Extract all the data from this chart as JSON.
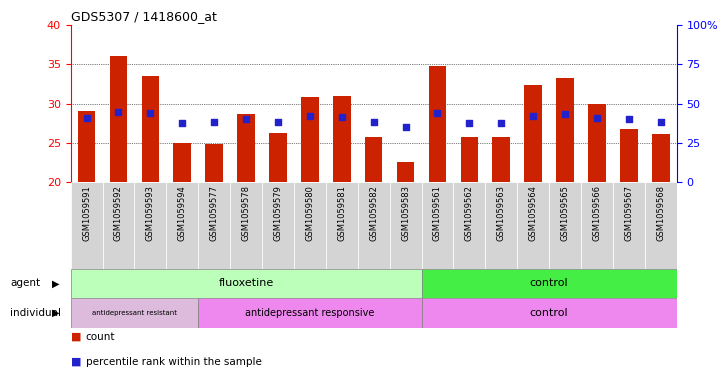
{
  "title": "GDS5307 / 1418600_at",
  "samples": [
    "GSM1059591",
    "GSM1059592",
    "GSM1059593",
    "GSM1059594",
    "GSM1059577",
    "GSM1059578",
    "GSM1059579",
    "GSM1059580",
    "GSM1059581",
    "GSM1059582",
    "GSM1059583",
    "GSM1059561",
    "GSM1059562",
    "GSM1059563",
    "GSM1059564",
    "GSM1059565",
    "GSM1059566",
    "GSM1059567",
    "GSM1059568"
  ],
  "bar_values": [
    29.0,
    36.1,
    33.5,
    25.0,
    24.8,
    28.7,
    26.2,
    30.8,
    30.9,
    25.7,
    22.5,
    34.8,
    25.8,
    25.7,
    32.3,
    33.2,
    30.0,
    26.8,
    26.1
  ],
  "blue_values": [
    28.2,
    28.9,
    28.8,
    27.5,
    27.6,
    28.0,
    27.6,
    28.4,
    28.3,
    27.6,
    27.0,
    28.8,
    27.5,
    27.5,
    28.4,
    28.7,
    28.2,
    28.0,
    27.6
  ],
  "ylim_left": [
    20,
    40
  ],
  "ylim_right": [
    0,
    100
  ],
  "yticks_left": [
    20,
    25,
    30,
    35,
    40
  ],
  "yticks_right": [
    0,
    25,
    50,
    75,
    100
  ],
  "bar_color": "#cc2200",
  "blue_color": "#2222cc",
  "agent_fluox_color": "#bbffbb",
  "agent_ctrl_color": "#44ee44",
  "indiv_resist_color": "#ddbbdd",
  "indiv_resp_color": "#ee88ee",
  "indiv_ctrl_color": "#ee88ee",
  "ticklabel_bg": "#d4d4d4"
}
